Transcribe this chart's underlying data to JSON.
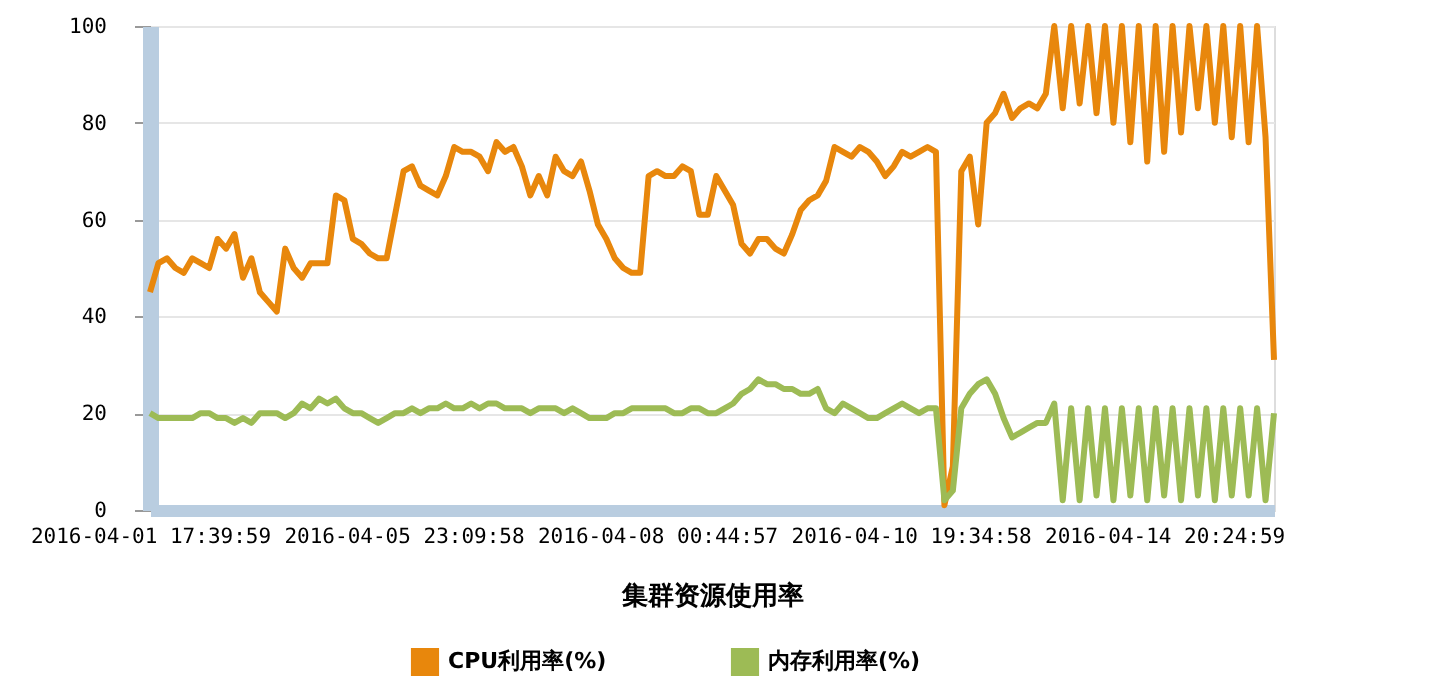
{
  "chart_data": {
    "type": "line",
    "xlabel": "集群资源使用率",
    "categories": [
      "2016-04-01 17:39:59",
      null,
      null,
      null,
      null,
      null,
      null,
      null,
      null,
      null,
      null,
      null,
      null,
      null,
      null,
      null,
      null,
      null,
      null,
      null,
      null,
      null,
      null,
      null,
      null,
      null,
      null,
      null,
      null,
      null,
      "2016-04-05 23:09:58",
      null,
      null,
      null,
      null,
      null,
      null,
      null,
      null,
      null,
      null,
      null,
      null,
      null,
      null,
      null,
      null,
      null,
      null,
      null,
      null,
      null,
      null,
      null,
      null,
      null,
      null,
      null,
      null,
      null,
      "2016-04-08 00:44:57",
      null,
      null,
      null,
      null,
      null,
      null,
      null,
      null,
      null,
      null,
      null,
      null,
      null,
      null,
      null,
      null,
      null,
      null,
      null,
      null,
      null,
      null,
      null,
      null,
      null,
      null,
      null,
      null,
      null,
      "2016-04-10 19:34:58",
      null,
      null,
      null,
      null,
      null,
      null,
      null,
      null,
      null,
      null,
      null,
      null,
      null,
      null,
      null,
      null,
      null,
      null,
      null,
      null,
      null,
      null,
      null,
      null,
      null,
      null,
      null,
      null,
      null,
      "2016-04-14 20:24:59",
      null,
      null,
      null,
      null,
      null,
      null,
      null,
      null,
      null,
      null,
      null,
      null,
      null
    ],
    "series": [
      {
        "name": "CPU利用率(%)",
        "color": "#e8870c",
        "values": [
          45,
          51,
          52,
          50,
          49,
          52,
          51,
          50,
          56,
          54,
          57,
          48,
          52,
          45,
          43,
          41,
          54,
          50,
          48,
          51,
          51,
          51,
          65,
          64,
          56,
          55,
          53,
          52,
          52,
          61,
          70,
          71,
          67,
          66,
          65,
          69,
          75,
          74,
          74,
          73,
          70,
          76,
          74,
          75,
          71,
          65,
          69,
          65,
          73,
          70,
          69,
          72,
          66,
          59,
          56,
          52,
          50,
          49,
          49,
          69,
          70,
          69,
          69,
          71,
          70,
          61,
          61,
          69,
          66,
          63,
          55,
          53,
          56,
          56,
          54,
          53,
          57,
          62,
          64,
          65,
          68,
          75,
          74,
          73,
          75,
          74,
          72,
          69,
          71,
          74,
          73,
          74,
          75,
          74,
          1,
          9,
          70,
          73,
          59,
          80,
          82,
          86,
          81,
          83,
          84,
          83,
          86,
          100,
          83,
          100,
          84,
          100,
          82,
          100,
          80,
          100,
          76,
          100,
          72,
          100,
          74,
          100,
          78,
          100,
          83,
          100,
          80,
          100,
          77,
          100,
          76,
          100,
          77,
          31
        ]
      },
      {
        "name": "内存利用率(%)",
        "color": "#9dbb55",
        "values": [
          20,
          19,
          19,
          19,
          19,
          19,
          20,
          20,
          19,
          19,
          18,
          19,
          18,
          20,
          20,
          20,
          19,
          20,
          22,
          21,
          23,
          22,
          23,
          21,
          20,
          20,
          19,
          18,
          19,
          20,
          20,
          21,
          20,
          21,
          21,
          22,
          21,
          21,
          22,
          21,
          22,
          22,
          21,
          21,
          21,
          20,
          21,
          21,
          21,
          20,
          21,
          20,
          19,
          19,
          19,
          20,
          20,
          21,
          21,
          21,
          21,
          21,
          20,
          20,
          21,
          21,
          20,
          20,
          21,
          22,
          24,
          25,
          27,
          26,
          26,
          25,
          25,
          24,
          24,
          25,
          21,
          20,
          22,
          21,
          20,
          19,
          19,
          20,
          21,
          22,
          21,
          20,
          21,
          21,
          2,
          4,
          21,
          24,
          26,
          27,
          24,
          19,
          15,
          16,
          17,
          18,
          18,
          22,
          2,
          21,
          2,
          21,
          3,
          21,
          2,
          21,
          3,
          21,
          2,
          21,
          3,
          21,
          2,
          21,
          3,
          21,
          2,
          21,
          3,
          21,
          3,
          21,
          2,
          20
        ]
      }
    ],
    "ylim": [
      0,
      100
    ],
    "yticks": [
      0,
      20,
      40,
      60,
      80,
      100
    ],
    "grid": "y",
    "legend": "bottom"
  }
}
